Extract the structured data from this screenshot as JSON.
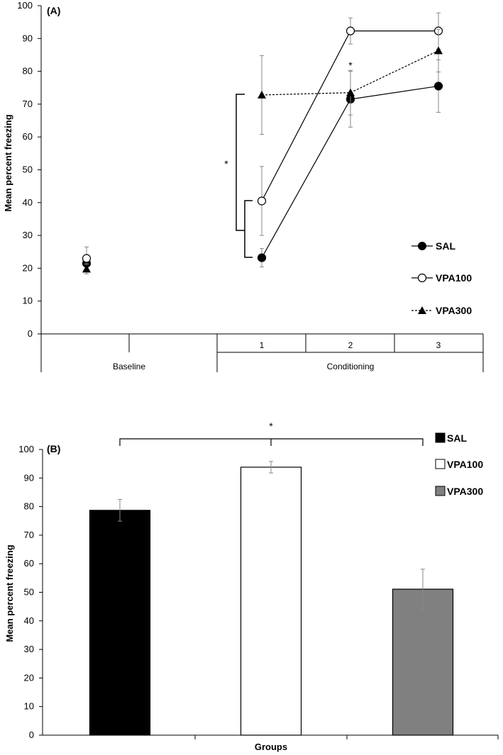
{
  "chart_data": [
    {
      "panel": "(A)",
      "type": "line",
      "ylabel": "Mean percent freezing",
      "ylim": [
        0,
        100
      ],
      "yticks": [
        0,
        10,
        20,
        30,
        40,
        50,
        60,
        70,
        80,
        90,
        100
      ],
      "x_groups": [
        {
          "label": "Baseline",
          "categories": [
            "Baseline"
          ]
        },
        {
          "label": "Conditioning",
          "categories": [
            "1",
            "2",
            "3"
          ]
        }
      ],
      "x_categories": [
        "Baseline",
        "1",
        "2",
        "3"
      ],
      "series": [
        {
          "name": "SAL",
          "marker": "filled-circle",
          "line": "solid",
          "values": [
            21.5,
            23.2,
            71.5,
            75.5
          ],
          "errors": [
            2.5,
            2.8,
            8.5,
            8.0
          ]
        },
        {
          "name": "VPA100",
          "marker": "open-circle",
          "line": "solid",
          "values": [
            23.0,
            40.5,
            92.3,
            92.3
          ],
          "errors": [
            3.5,
            10.5,
            4.0,
            5.5
          ]
        },
        {
          "name": "VPA300",
          "marker": "filled-triangle",
          "line": "dashed",
          "values": [
            19.8,
            72.8,
            73.5,
            86.3
          ],
          "errors": [
            1.5,
            12.0,
            6.8,
            6.5
          ]
        }
      ],
      "annotations": [
        "*",
        "*"
      ]
    },
    {
      "panel": "(B)",
      "type": "bar",
      "xlabel": "Groups",
      "ylabel": "Mean percent freezing",
      "ylim": [
        0,
        100
      ],
      "yticks": [
        0,
        10,
        20,
        30,
        40,
        50,
        60,
        70,
        80,
        90,
        100
      ],
      "categories": [
        "SAL",
        "VPA100",
        "VPA300"
      ],
      "values": [
        78.7,
        93.8,
        51.1
      ],
      "errors": [
        3.8,
        2.0,
        7.0
      ],
      "colors": [
        "#000000",
        "#ffffff",
        "#808080"
      ],
      "annotations": [
        "*"
      ]
    }
  ]
}
